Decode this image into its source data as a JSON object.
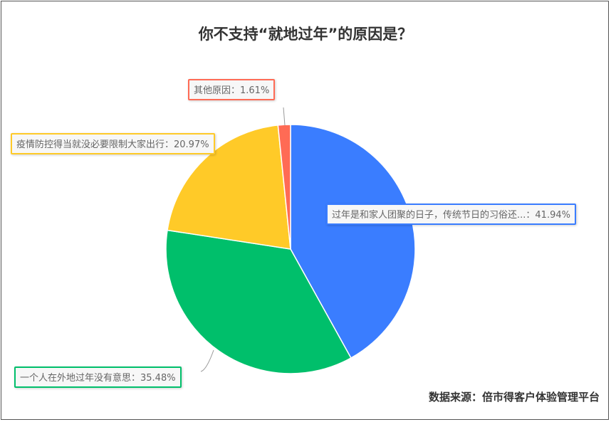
{
  "chart_data": {
    "type": "pie",
    "title": "你不支持“就地过年”的原因是？",
    "slices": [
      {
        "label": "过年是和家人团聚的日子，传统节日的习俗还...",
        "value": 41.94,
        "display": "过年是和家人团聚的日子，传统节日的习俗还...：41.94%",
        "color": "#3a7dff"
      },
      {
        "label": "一个人在外地过年没有意思",
        "value": 35.48,
        "display": "一个人在外地过年没有意思：35.48%",
        "color": "#00bf6b"
      },
      {
        "label": "疫情防控得当就没必要限制大家出行",
        "value": 20.97,
        "display": "疫情防控得当就没必要限制大家出行：20.97%",
        "color": "#ffca28"
      },
      {
        "label": "其他原因",
        "value": 1.61,
        "display": "其他原因：1.61%",
        "color": "#ff6b55"
      }
    ],
    "start_angle": "12 o'clock",
    "direction": "clockwise"
  },
  "source": "数据来源：倍市得客户体验管理平台"
}
